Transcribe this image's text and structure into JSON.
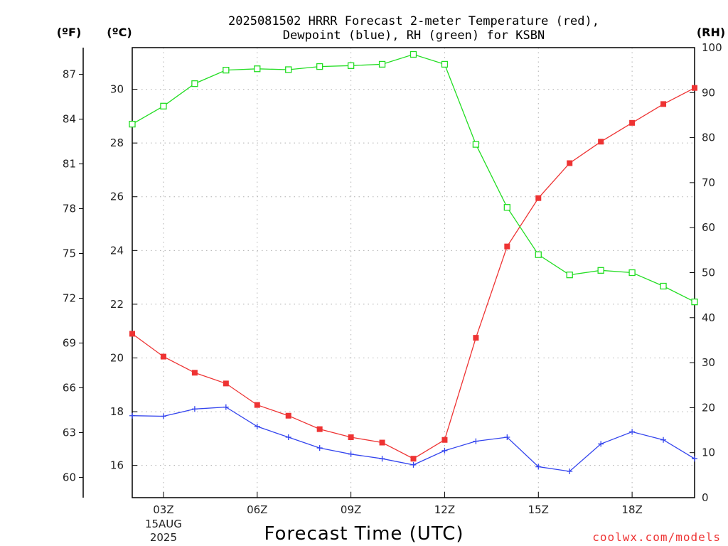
{
  "chart_data": {
    "type": "line",
    "title_line1": "2025081502 HRRR Forecast 2-meter Temperature (red),",
    "title_line2": "Dewpoint (blue), RH (green) for KSBN",
    "xlabel": "Forecast Time (UTC)",
    "left_unit_f": "(ºF)",
    "left_unit_c": "(ºC)",
    "right_unit": "(RH)",
    "credit": "coolwx.com/models",
    "x_hours": [
      2,
      3,
      4,
      5,
      6,
      7,
      8,
      9,
      10,
      11,
      12,
      13,
      14,
      15,
      16,
      17,
      18,
      19,
      20
    ],
    "x_ticks": [
      {
        "hour": 3,
        "label": "03Z",
        "sub1": "15AUG",
        "sub2": "2025"
      },
      {
        "hour": 6,
        "label": "06Z",
        "sub1": "",
        "sub2": ""
      },
      {
        "hour": 9,
        "label": "09Z",
        "sub1": "",
        "sub2": ""
      },
      {
        "hour": 12,
        "label": "12Z",
        "sub1": "",
        "sub2": ""
      },
      {
        "hour": 15,
        "label": "15Z",
        "sub1": "",
        "sub2": ""
      },
      {
        "hour": 18,
        "label": "18Z",
        "sub1": "",
        "sub2": ""
      }
    ],
    "xlim": [
      2,
      20
    ],
    "celsius_ticks": [
      16,
      18,
      20,
      22,
      24,
      26,
      28,
      30
    ],
    "celsius_range": [
      14.8,
      31.55
    ],
    "fahrenheit_ticks": [
      60,
      63,
      66,
      69,
      72,
      75,
      78,
      81,
      84,
      87
    ],
    "rh_ticks": [
      0,
      10,
      20,
      30,
      40,
      50,
      60,
      70,
      80,
      90,
      100
    ],
    "rh_range": [
      0,
      100
    ],
    "grid": true,
    "series": [
      {
        "color": "#ee3333",
        "marker": "filled-square",
        "axis": "celsius",
        "values": [
          20.9,
          20.05,
          19.45,
          19.05,
          18.25,
          17.85,
          17.35,
          17.05,
          16.85,
          16.25,
          16.95,
          20.75,
          24.15,
          25.95,
          27.25,
          28.05,
          28.75,
          29.45,
          30.05
        ]
      },
      {
        "color": "#3344ee",
        "marker": "plus",
        "axis": "celsius",
        "values": [
          17.85,
          17.83,
          18.1,
          18.17,
          17.45,
          17.05,
          16.65,
          16.42,
          16.25,
          16.02,
          16.55,
          16.9,
          17.05,
          15.95,
          15.78,
          16.8,
          17.25,
          16.95,
          16.25
        ]
      },
      {
        "color": "#22dd22",
        "marker": "open-square",
        "axis": "rh",
        "values": [
          83,
          87,
          92,
          95,
          95.3,
          95.1,
          95.8,
          96,
          96.3,
          98.5,
          96.3,
          78.5,
          64.5,
          54,
          49.5,
          50.5,
          50,
          47,
          43.5
        ]
      }
    ]
  }
}
